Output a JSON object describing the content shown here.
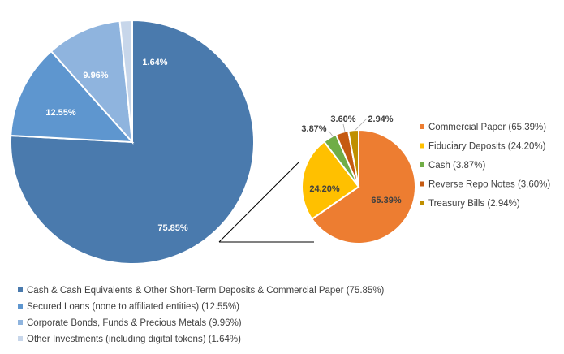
{
  "chart_data": [
    {
      "type": "pie",
      "title": "",
      "slices": [
        {
          "label": "Cash & Cash Equivalents & Other Short-Term Deposits & Commercial Paper (75.85%)",
          "value": 75.85,
          "data_label": "75.85%",
          "color": "#4a7aad"
        },
        {
          "label": "Secured Loans (none to affiliated entities) (12.55%)",
          "value": 12.55,
          "data_label": "12.55%",
          "color": "#5e96cf"
        },
        {
          "label": "Corporate Bonds, Funds & Precious Metals (9.96%)",
          "value": 9.96,
          "data_label": "9.96%",
          "color": "#8fb4de"
        },
        {
          "label": "Other Investments (including digital tokens) (1.64%)",
          "value": 1.64,
          "data_label": "1.64%",
          "color": "#c7d6ea"
        }
      ],
      "legend_position": "bottom-left"
    },
    {
      "type": "pie",
      "title": "",
      "slices": [
        {
          "label": "Commercial Paper (65.39%)",
          "value": 65.39,
          "data_label": "65.39%",
          "color": "#ed7d31"
        },
        {
          "label": "Fiduciary Deposits (24.20%)",
          "value": 24.2,
          "data_label": "24.20%",
          "color": "#ffc000"
        },
        {
          "label": "Cash (3.87%)",
          "value": 3.87,
          "data_label": "3.87%",
          "color": "#70ad47"
        },
        {
          "label": "Reverse Repo Notes (3.60%)",
          "value": 3.6,
          "data_label": "3.60%",
          "color": "#c55a11"
        },
        {
          "label": "Treasury Bills (2.94%)",
          "value": 2.94,
          "data_label": "2.94%",
          "color": "#bf8f00"
        }
      ],
      "legend_position": "right"
    }
  ]
}
